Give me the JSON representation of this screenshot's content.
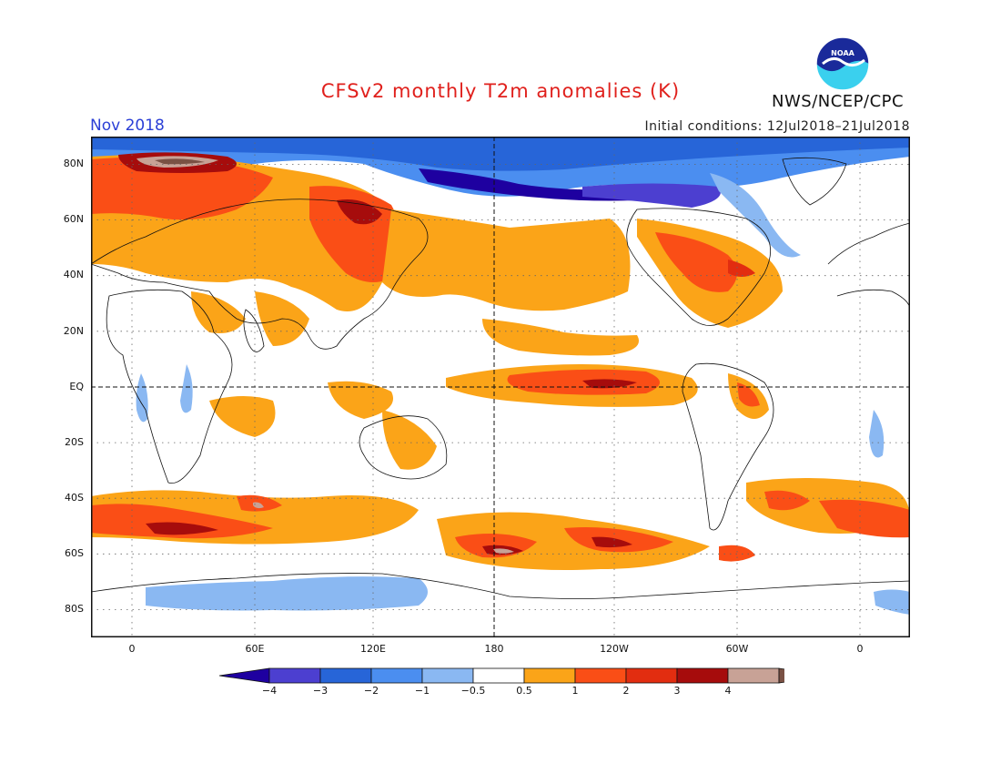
{
  "header": {
    "title": "CFSv2 monthly T2m anomalies (K)",
    "month": "Nov 2018",
    "initial_conditions": "Initial conditions: 12Jul2018–21Jul2018",
    "organization": "NWS/NCEP/CPC",
    "logo_text": "NOAA"
  },
  "map": {
    "projection": "cylindrical equidistant, centered 180",
    "lat_ticks": [
      "80N",
      "60N",
      "40N",
      "20N",
      "EQ",
      "20S",
      "40S",
      "60S",
      "80S"
    ],
    "lon_ticks": [
      "0",
      "60E",
      "120E",
      "180",
      "120W",
      "60W",
      "0"
    ],
    "grid": "dotted 20° lat / 30° lon, dashed equator and 180"
  },
  "colorbar": {
    "labels": [
      "−4",
      "−3",
      "−2",
      "−1",
      "−0.5",
      "0.5",
      "1",
      "2",
      "3",
      "4"
    ],
    "colors": [
      "#1e00a0",
      "#4c3fd0",
      "#2765d8",
      "#4b8ef0",
      "#8ab8f2",
      "#ffffff",
      "#fba418",
      "#fa4e16",
      "#e22d10",
      "#a60c0c",
      "#c8a296",
      "#7a5144"
    ]
  },
  "colors": {
    "title": "#e0201c",
    "month": "#2b3fd6"
  }
}
